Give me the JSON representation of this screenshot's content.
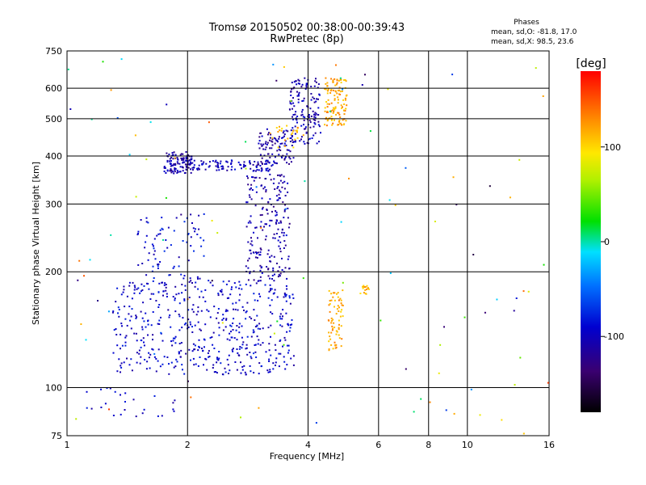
{
  "chart_data": {
    "type": "scatter",
    "title": "Tromsø 20150502 00:38:00-00:39:43",
    "subtitle": "RwPretec (8p)",
    "xlabel": "Frequency [MHz]",
    "ylabel": "Stationary phase Virtual Height [km]",
    "xscale": "log",
    "yscale": "log",
    "xlim": [
      1,
      16
    ],
    "ylim": [
      75,
      750
    ],
    "x_ticks": [
      1,
      2,
      4,
      6,
      8,
      10,
      16
    ],
    "y_ticks": [
      75,
      100,
      200,
      300,
      400,
      500,
      600,
      750
    ],
    "grid": true,
    "info": {
      "heading": "Phases",
      "line1": "mean, sd,O: -81.8, 17.0",
      "line2": "mean, sd,X:  98.5, 23.6"
    },
    "colorbar": {
      "label": "[deg]",
      "range": [
        -180,
        180
      ],
      "ticks": [
        -100,
        0,
        100
      ]
    },
    "clusters": [
      {
        "trace": "F-region O-mode lower branch",
        "x": [
          1.75,
          2.05
        ],
        "y": [
          360,
          410
        ],
        "phase": -110,
        "n": 120
      },
      {
        "trace": "F-region O-mode trace",
        "x": [
          2.05,
          3.3
        ],
        "y": [
          365,
          390
        ],
        "phase": -100,
        "n": 100
      },
      {
        "trace": "F-region O-mode trace",
        "x": [
          3.0,
          3.7
        ],
        "y": [
          380,
          470
        ],
        "phase": -110,
        "n": 100
      },
      {
        "trace": "F-region O-mode cusp",
        "x": [
          3.6,
          4.3
        ],
        "y": [
          430,
          640
        ],
        "phase": -105,
        "n": 140
      },
      {
        "trace": "F-region X-mode trace",
        "x": [
          3.2,
          3.9
        ],
        "y": [
          420,
          480
        ],
        "phase": 110,
        "n": 25
      },
      {
        "trace": "F-region X-mode cusp",
        "x": [
          4.4,
          5.0
        ],
        "y": [
          480,
          640
        ],
        "phase": 120,
        "n": 120
      },
      {
        "trace": "Spread echoes column",
        "x": [
          2.8,
          3.6
        ],
        "y": [
          190,
          360
        ],
        "phase": -110,
        "n": 200
      },
      {
        "trace": "Spread echoes low band",
        "x": [
          1.3,
          3.7
        ],
        "y": [
          108,
          190
        ],
        "phase": -95,
        "n": 520
      },
      {
        "trace": "Spread echoes low band",
        "x": [
          1.5,
          2.2
        ],
        "y": [
          190,
          290
        ],
        "phase": -90,
        "n": 80
      },
      {
        "trace": "X-mode spread",
        "x": [
          4.5,
          4.9
        ],
        "y": [
          125,
          180
        ],
        "phase": 120,
        "n": 70
      },
      {
        "trace": "Bottom echoes",
        "x": [
          1.1,
          1.9
        ],
        "y": [
          83,
          100
        ],
        "phase": -95,
        "n": 25
      },
      {
        "trace": "Isolated patch",
        "x": [
          5.4,
          5.7
        ],
        "y": [
          175,
          185
        ],
        "phase": 110,
        "n": 15
      },
      {
        "trace": "Scattered noise",
        "x": [
          1.0,
          16.0
        ],
        "y": [
          75,
          750
        ],
        "phase": 0,
        "n": 110
      }
    ]
  }
}
